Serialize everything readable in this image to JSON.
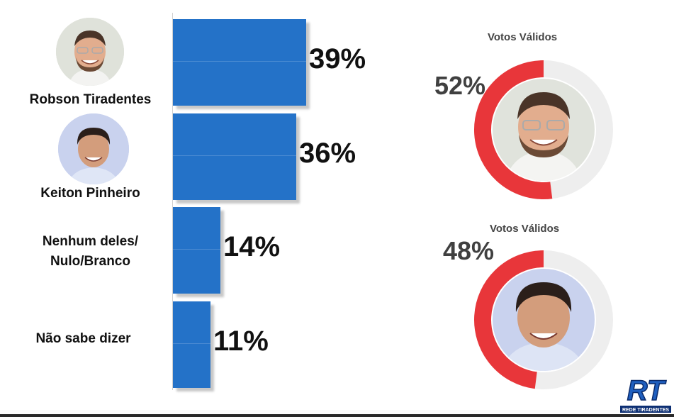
{
  "chart_data": [
    {
      "type": "bar",
      "orientation": "horizontal",
      "categories": [
        "Robson Tiradentes",
        "Keiton Pinheiro",
        "Nenhum deles/\nNulo/Branco",
        "Não sabe dizer"
      ],
      "values": [
        39,
        36,
        14,
        11
      ],
      "value_labels": [
        "39%",
        "36%",
        "14%",
        "11%"
      ],
      "color": "#2472c8"
    },
    {
      "type": "pie",
      "variant": "donut",
      "title": "Votos Válidos",
      "value": 52,
      "value_label": "52%",
      "colors": {
        "fill": "#e8363a",
        "track": "#eeeeee"
      }
    },
    {
      "type": "pie",
      "variant": "donut",
      "title": "Votos Válidos",
      "value": 48,
      "value_label": "48%",
      "colors": {
        "fill": "#e8363a",
        "track": "#eeeeee"
      }
    }
  ],
  "logo": {
    "letters": "RT",
    "caption": "REDE TIRADENTES"
  }
}
